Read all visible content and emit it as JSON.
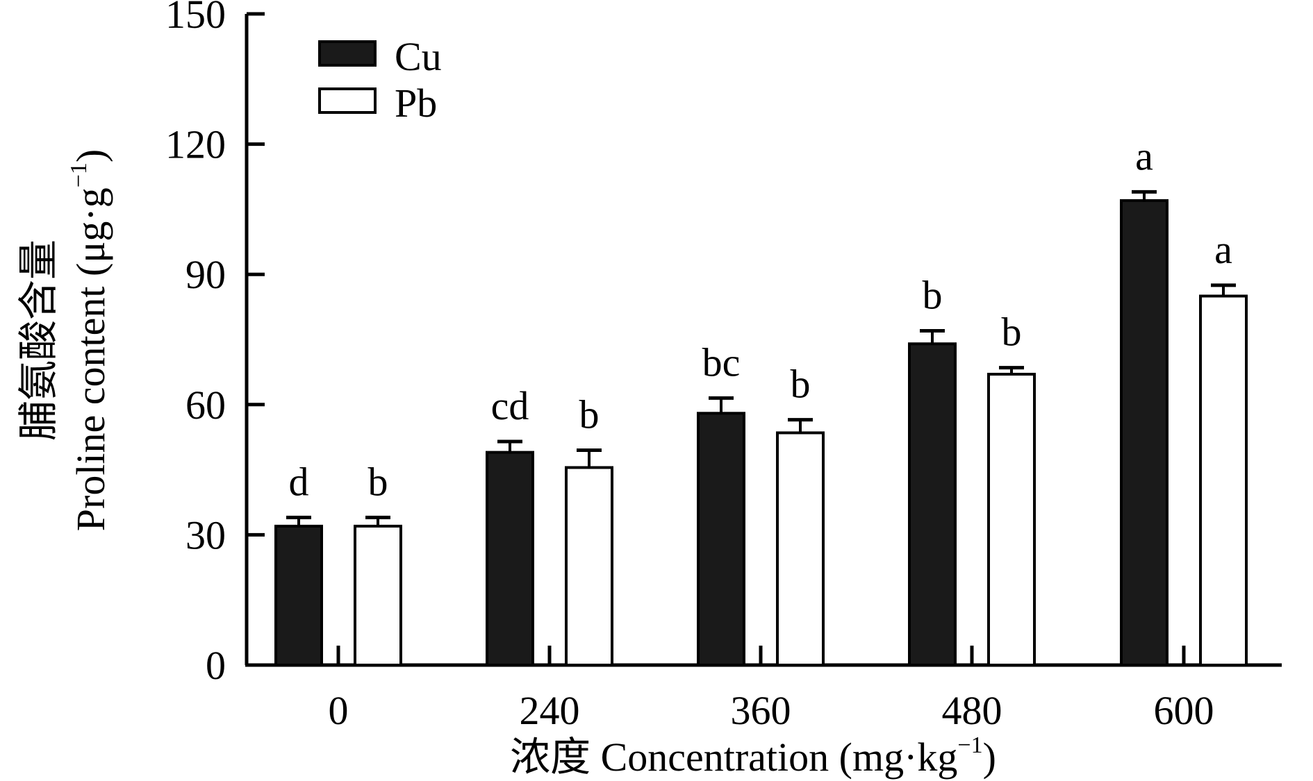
{
  "chart_data": {
    "type": "bar",
    "title": "",
    "categories": [
      "0",
      "240",
      "360",
      "480",
      "600"
    ],
    "series": [
      {
        "name": "Cu",
        "color": "#1a1a1a",
        "values": [
          32,
          49,
          58,
          74,
          107
        ],
        "errors": [
          2,
          2.5,
          3.5,
          3,
          2
        ],
        "labels": [
          "d",
          "cd",
          "bc",
          "b",
          "a"
        ]
      },
      {
        "name": "Pb",
        "color": "#ffffff",
        "values": [
          32,
          45.5,
          53.5,
          67,
          85
        ],
        "errors": [
          2,
          4,
          3,
          1.5,
          2.5
        ],
        "labels": [
          "b",
          "b",
          "b",
          "b",
          "a"
        ]
      }
    ],
    "ylim": [
      0,
      150
    ],
    "yticks": [
      "0",
      "30",
      "60",
      "90",
      "120",
      "150"
    ],
    "xlabel": {
      "prefix": "浓度 Concentration (mg·kg",
      "sup": "−1",
      "suffix": ")"
    },
    "ylabel": {
      "line1": "脯氨酸含量",
      "line2_prefix": "Proline content (μg·g",
      "line2_sup": "−1",
      "line2_suffix": ")"
    },
    "legend_position": "top-left",
    "grid": false
  }
}
